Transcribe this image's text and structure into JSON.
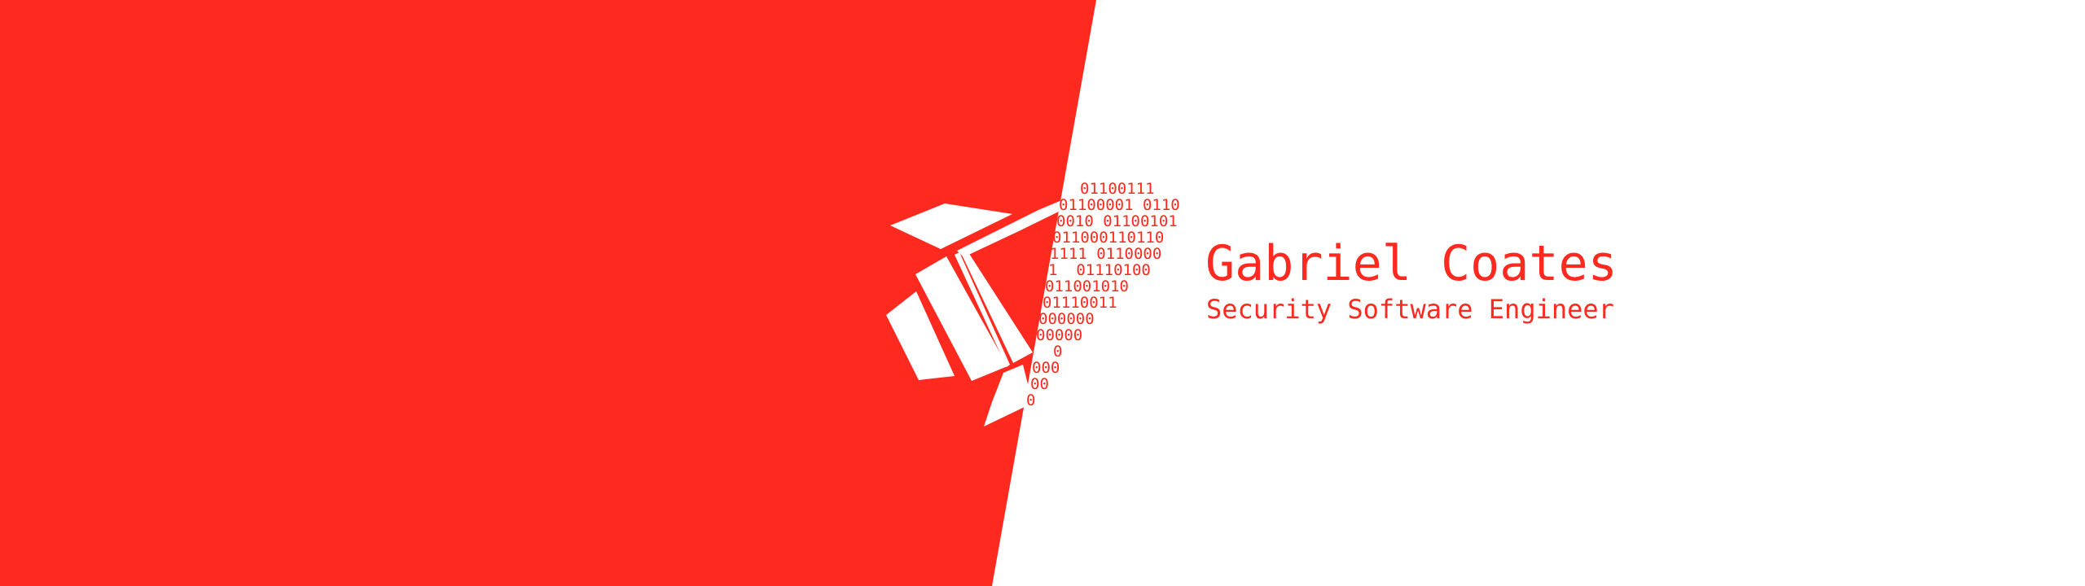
{
  "colors": {
    "brand": "#fe2a1f",
    "background": "#ffffff"
  },
  "profile": {
    "name": "Gabriel Coates",
    "title": "Security Software Engineer"
  },
  "binary_trail": [
    "01100111",
    "01100001 0110",
    "0010 01100101",
    "011000110110",
    "1111 0110000",
    "1  01110100",
    "011001010",
    "01110011",
    "000000",
    "00000",
    "0",
    "000",
    "00",
    "0"
  ],
  "logo_icon": "rocket-icon"
}
